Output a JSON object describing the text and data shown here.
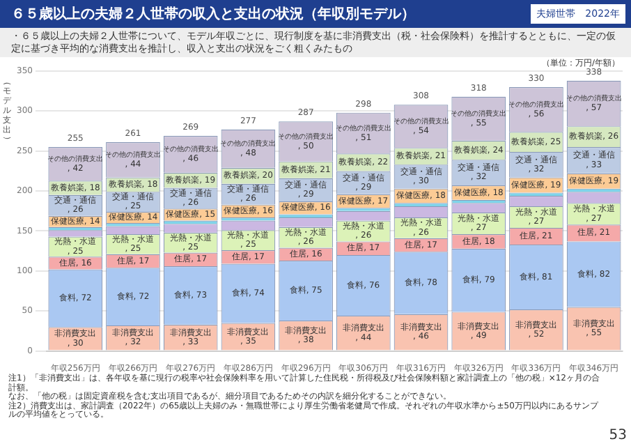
{
  "chart_data": {
    "type": "bar",
    "stacked": true,
    "title": "６５歳以上の夫婦２人世帯の収入と支出の状況（年収別モデル）",
    "subtitle": "・６５歳以上の夫婦２人世帯について、モデル年収ごとに、現行制度を基に非消費支出（税・社会保険料）を推計するとともに、一定の仮定に基づき平均的な消費支出を推計し、収入と支出の状況をごく粗くみたもの",
    "ylabel": "（モデル支出）",
    "categories": [
      "年収256万円",
      "年収266万円",
      "年収276万円",
      "年収286万円",
      "年収296万円",
      "年収306万円",
      "年収316万円",
      "年収326万円",
      "年収336万円",
      "年収346万円"
    ],
    "ylim": [
      0,
      350
    ],
    "yticks": [
      0,
      50,
      100,
      150,
      200,
      250,
      300,
      350
    ],
    "grid": "y",
    "legend": false,
    "series": [
      {
        "name": "非消費支出",
        "color": "#f9c3b0",
        "values": [
          30,
          32,
          33,
          35,
          38,
          44,
          46,
          49,
          52,
          55
        ],
        "value_labels": [
          ", 30",
          ", 32",
          ", 33",
          ", 35",
          ", 38",
          ", 44",
          ", 46",
          ", 49",
          ", 52",
          ", 55"
        ]
      },
      {
        "name": "食料",
        "color": "#aac8f2",
        "values": [
          72,
          72,
          73,
          74,
          75,
          76,
          78,
          79,
          81,
          82
        ],
        "value_labels": [
          ", 72",
          ", 72",
          ", 73",
          ", 74",
          ", 75",
          ", 76",
          ", 78",
          ", 79",
          ", 81",
          ", 82"
        ]
      },
      {
        "name": "住居",
        "color": "#f5a9a9",
        "values": [
          16,
          17,
          17,
          17,
          16,
          17,
          17,
          18,
          21,
          21
        ],
        "value_labels": [
          ", 16",
          ", 17",
          ", 17",
          ", 17",
          ", 16",
          ", 17",
          ", 17",
          ", 18",
          ", 21",
          ", 21"
        ]
      },
      {
        "name": "光熱・水道",
        "color": "#dcf2b8",
        "values": [
          25,
          25,
          25,
          25,
          26,
          26,
          26,
          27,
          27,
          27
        ],
        "value_labels": [
          ", 25",
          ", 25",
          ", 25",
          ", 25",
          ", 26",
          ", 26",
          ", 26",
          ", 27",
          ", 27",
          ", 27"
        ]
      },
      {
        "color": "#cbb8e2",
        "values": [
          8,
          10,
          11,
          12,
          12,
          12,
          14,
          12,
          13,
          14
        ]
      },
      {
        "color": "#7fd4ea",
        "values": [
          4,
          4,
          4,
          4,
          4,
          4,
          4,
          4,
          4,
          4
        ]
      },
      {
        "name": "保健医療",
        "color": "#fccb95",
        "values": [
          14,
          14,
          15,
          16,
          16,
          17,
          18,
          18,
          19,
          19
        ],
        "value_labels": [
          ", 14",
          ", 14",
          ", 15",
          ", 16",
          ", 16",
          ", 17",
          ", 18",
          ", 18",
          ", 19",
          ", 19"
        ]
      },
      {
        "name": "交通・通信",
        "color": "#bccbe3",
        "values": [
          26,
          25,
          26,
          26,
          29,
          29,
          30,
          32,
          32,
          33
        ],
        "value_labels": [
          ", 26",
          ", 25",
          ", 26",
          ", 26",
          ", 29",
          ", 29",
          ", 30",
          ", 32",
          ", 32",
          ", 33"
        ]
      },
      {
        "name": "教養娯楽",
        "color": "#d6e8c0",
        "values": [
          18,
          18,
          19,
          20,
          21,
          22,
          21,
          24,
          25,
          26
        ],
        "value_labels": [
          ", 18",
          ", 18",
          ", 19",
          ", 20",
          ", 21",
          ", 22",
          ", 21",
          ", 24",
          ", 25",
          ", 26"
        ]
      },
      {
        "name": "その他の消費支出",
        "color": "#cdc4d8",
        "values": [
          42,
          44,
          46,
          48,
          50,
          51,
          54,
          55,
          56,
          57
        ],
        "value_labels": [
          ", 42",
          ", 44",
          ", 46",
          ", 48",
          ", 50",
          ", 51",
          ", 54",
          ", 55",
          ", 56",
          ", 57"
        ]
      }
    ],
    "totals": [
      "255",
      "261",
      "269",
      "277",
      "287",
      "298",
      "308",
      "318",
      "330",
      "338"
    ],
    "annotations": [
      "（単位：万円/年額）",
      "夫婦世帯　2022年",
      "注1）「非消費支出」は、各年収を基に現行の税率や社会保険料率を用いて計算した住民税・所得税及び社会保険料額と家計調査上の「他の税」×12ヶ月の合計額。",
      "なお、「他の税」は固定資産税を含む支出項目であるが、細分項目であるためその内訳を細分化することができない。",
      "注2）消費支出は、家計調査（2022年）の65歳以上夫婦のみ・無職世帯により厚生労働省老健局で作成。それぞれの年収水準から±50万円以内にあるサンプルの平均値をとっている。",
      "53"
    ]
  }
}
